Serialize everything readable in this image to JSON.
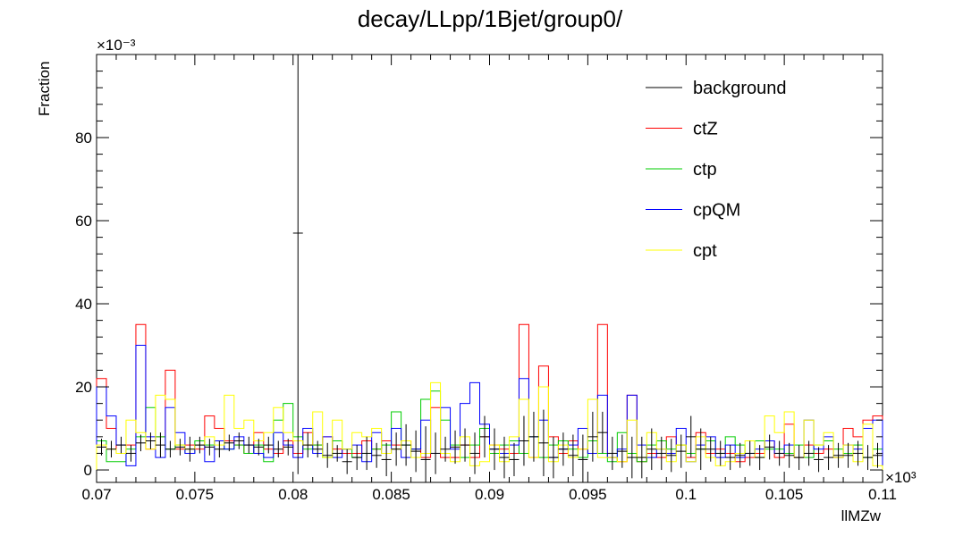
{
  "chart_data": {
    "type": "histogram",
    "title": "decay/LLpp/1Bjet/group0/",
    "xlabel": "llMZw",
    "ylabel": "Fraction",
    "x_multiplier": "×10³",
    "y_multiplier": "×10⁻³",
    "xlim": [
      0.07,
      0.11
    ],
    "ylim": [
      -3,
      100
    ],
    "x_ticks": [
      "0.07",
      "0.075",
      "0.08",
      "0.085",
      "0.09",
      "0.095",
      "0.1",
      "0.105",
      "0.11"
    ],
    "y_ticks": [
      "0",
      "20",
      "40",
      "60",
      "80"
    ],
    "bin_width": 0.0005,
    "legend_position": "top-right",
    "series": [
      {
        "name": "background",
        "color": "#000000",
        "style": "errorbar",
        "values": [
          5.5,
          5.0,
          6.0,
          4.0,
          6.5,
          7.0,
          6.0,
          5.0,
          5.5,
          5.0,
          6.0,
          5.5,
          5.0,
          6.5,
          7.0,
          6.0,
          5.5,
          6.0,
          5.0,
          5.5,
          57.0,
          6.0,
          5.0,
          3.5,
          4.0,
          2.0,
          3.0,
          4.0,
          3.5,
          2.5,
          5.0,
          6.0,
          4.5,
          2.5,
          4.0,
          5.0,
          5.5,
          6.0,
          4.0,
          8.0,
          5.0,
          3.0,
          2.5,
          7.0,
          8.0,
          6.5,
          3.0,
          5.0,
          3.5,
          2.5,
          8.0,
          9.0,
          4.0,
          4.5,
          3.0,
          3.0,
          5.0,
          4.0,
          3.5,
          4.5,
          8.0,
          5.0,
          5.0,
          4.0,
          3.0,
          3.5,
          4.0,
          3.0,
          5.5,
          4.0,
          3.5,
          3.0,
          4.0,
          2.5,
          3.0,
          3.5,
          3.5,
          4.0,
          3.0,
          3.5
        ],
        "errors": [
          2,
          2,
          2,
          2,
          2,
          2,
          3,
          2,
          2,
          3,
          2,
          2,
          2,
          2,
          2,
          2,
          2,
          2,
          2,
          2,
          58,
          3,
          2,
          3,
          2,
          3,
          3,
          4,
          3,
          4,
          4,
          5,
          5,
          8,
          5,
          3,
          4,
          4,
          5,
          5,
          5,
          5,
          4,
          6,
          6,
          8,
          5,
          4,
          5,
          6,
          6,
          5,
          4,
          4,
          5,
          5,
          5,
          4,
          4,
          4,
          5,
          5,
          3,
          3,
          3,
          3,
          3,
          3,
          3,
          3,
          3,
          3,
          3,
          3,
          3,
          3,
          3,
          3,
          3,
          3
        ]
      },
      {
        "name": "ctZ",
        "color": "#ff0000",
        "style": "step",
        "values": [
          22.0,
          10.0,
          4.0,
          6.0,
          35.0,
          5.0,
          8.0,
          24.0,
          5.0,
          6.0,
          5.0,
          13.0,
          10.0,
          7.0,
          6.0,
          4.0,
          9.0,
          5.0,
          4.0,
          7.0,
          4.0,
          9.0,
          6.0,
          8.0,
          5.0,
          4.0,
          4.0,
          7.0,
          5.0,
          7.0,
          6.0,
          7.0,
          5.0,
          3.0,
          15.0,
          3.0,
          3.0,
          6.0,
          3.0,
          8.0,
          6.0,
          5.0,
          4.0,
          35.0,
          3.0,
          25.0,
          8.0,
          4.0,
          7.0,
          5.0,
          4.0,
          35.0,
          3.0,
          2.0,
          18.0,
          2.0,
          4.0,
          3.0,
          8.0,
          6.0,
          3.0,
          9.0,
          4.0,
          5.0,
          4.0,
          2.0,
          3.0,
          4.0,
          7.0,
          3.0,
          11.0,
          3.0,
          6.0,
          4.0,
          5.0,
          3.0,
          10.0,
          8.0,
          12.0,
          13.0
        ]
      },
      {
        "name": "ctp",
        "color": "#00cc00",
        "style": "step",
        "values": [
          7.0,
          2.0,
          2.0,
          5.0,
          8.0,
          15.0,
          8.0,
          5.0,
          6.0,
          4.0,
          7.0,
          6.0,
          7.0,
          5.0,
          6.0,
          4.0,
          6.0,
          2.0,
          12.0,
          16.0,
          8.0,
          5.0,
          6.0,
          3.0,
          7.0,
          5.0,
          3.0,
          4.0,
          5.0,
          6.0,
          14.0,
          6.0,
          5.0,
          17.0,
          19.0,
          12.0,
          6.0,
          3.0,
          6.0,
          10.0,
          4.0,
          6.0,
          7.0,
          4.0,
          8.0,
          3.0,
          6.0,
          7.0,
          5.0,
          3.0,
          7.0,
          4.0,
          2.0,
          9.0,
          4.0,
          2.0,
          6.0,
          7.0,
          5.0,
          6.0,
          4.0,
          5.0,
          7.0,
          4.0,
          8.0,
          6.0,
          4.0,
          7.0,
          5.0,
          5.0,
          4.0,
          6.0,
          3.0,
          6.0,
          7.0,
          5.0,
          4.0,
          6.0,
          3.0,
          5.0
        ]
      },
      {
        "name": "cpQM",
        "color": "#0000ff",
        "style": "step",
        "values": [
          20.0,
          13.0,
          6.0,
          1.0,
          30.0,
          8.0,
          3.0,
          15.0,
          9.0,
          4.0,
          6.0,
          2.0,
          7.0,
          5.0,
          8.0,
          6.0,
          4.0,
          3.0,
          9.0,
          6.0,
          3.0,
          10.0,
          4.0,
          8.0,
          3.0,
          5.0,
          6.0,
          2.0,
          9.0,
          4.0,
          10.0,
          3.0,
          5.0,
          12.0,
          4.0,
          15.0,
          5.0,
          16.0,
          21.0,
          11.0,
          5.0,
          4.0,
          6.0,
          22.0,
          8.0,
          12.0,
          3.0,
          5.0,
          6.0,
          10.0,
          4.0,
          18.0,
          3.0,
          5.0,
          18.0,
          6.0,
          3.0,
          5.0,
          4.0,
          10.0,
          2.0,
          6.0,
          8.0,
          3.0,
          6.0,
          3.0,
          4.0,
          5.0,
          7.0,
          4.0,
          6.0,
          3.0,
          12.0,
          5.0,
          8.0,
          3.0,
          6.0,
          5.0,
          10.0,
          12.0
        ]
      },
      {
        "name": "cpt",
        "color": "#ffff00",
        "style": "step",
        "values": [
          6.0,
          5.0,
          4.0,
          12.0,
          9.0,
          5.0,
          18.0,
          17.0,
          6.0,
          5.0,
          6.0,
          8.0,
          6.0,
          18.0,
          10.0,
          12.0,
          7.0,
          9.0,
          15.0,
          9.0,
          7.0,
          6.0,
          14.0,
          3.0,
          12.0,
          5.0,
          9.0,
          8.0,
          10.0,
          4.0,
          5.0,
          7.0,
          3.0,
          4.0,
          21.0,
          4.0,
          2.0,
          8.0,
          1.0,
          2.0,
          6.0,
          2.0,
          8.0,
          17.0,
          3.0,
          20.0,
          2.0,
          6.0,
          3.0,
          5.0,
          17.0,
          3.0,
          3.0,
          2.0,
          12.0,
          3.0,
          9.0,
          5.0,
          2.0,
          6.0,
          2.0,
          8.0,
          3.0,
          1.0,
          2.0,
          4.0,
          7.0,
          3.0,
          13.0,
          9.0,
          14.0,
          3.0,
          12.0,
          6.0,
          9.0,
          3.0,
          6.0,
          2.0,
          11.0,
          1.0
        ]
      }
    ]
  }
}
